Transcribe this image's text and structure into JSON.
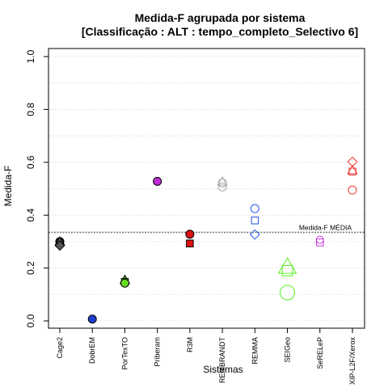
{
  "chart_data": {
    "type": "scatter",
    "title": "Medida-F agrupada por sistema",
    "subtitle": "[Classificação : ALT : tempo_completo_Selectivo 6]",
    "xlabel": "Sistemas",
    "ylabel": "Medida-F",
    "ylim": [
      0,
      1
    ],
    "yticks": [
      "0.0",
      "0.2",
      "0.4",
      "0.6",
      "0.8",
      "1.0"
    ],
    "grid": true,
    "categories": [
      "Cage2",
      "DobrEM",
      "PorTexTO",
      "Priberam",
      "R3M",
      "REMBRANDT",
      "REMMA",
      "SEIGeo",
      "SeRELeP",
      "XIP-L2F/Xerox"
    ],
    "reference_line": {
      "label": "Medida-F MÉDIA",
      "value": 0.335
    },
    "points": [
      {
        "category": "Cage2",
        "y": 0.3,
        "shape": "circle",
        "color": "#555555",
        "filled": true
      },
      {
        "category": "Cage2",
        "y": 0.295,
        "shape": "square",
        "color": "#555555",
        "filled": true
      },
      {
        "category": "Cage2",
        "y": 0.3,
        "shape": "triangle",
        "color": "#555555",
        "filled": true
      },
      {
        "category": "Cage2",
        "y": 0.285,
        "shape": "diamond",
        "color": "#555555",
        "filled": true
      },
      {
        "category": "DobrEM",
        "y": 0.007,
        "shape": "circle",
        "color": "#1f3fd0",
        "filled": true
      },
      {
        "category": "PorTexTO",
        "y": 0.155,
        "shape": "triangle",
        "color": "#66dd22",
        "filled": true
      },
      {
        "category": "PorTexTO",
        "y": 0.148,
        "shape": "square",
        "color": "#66dd22",
        "filled": true
      },
      {
        "category": "PorTexTO",
        "y": 0.143,
        "shape": "circle",
        "color": "#66dd22",
        "filled": true
      },
      {
        "category": "Priberam",
        "y": 0.528,
        "shape": "circle",
        "color": "#c12bd4",
        "filled": true
      },
      {
        "category": "R3M",
        "y": 0.328,
        "shape": "circle",
        "color": "#dd1111",
        "filled": true
      },
      {
        "category": "R3M",
        "y": 0.293,
        "shape": "square",
        "color": "#dd1111",
        "filled": true
      },
      {
        "category": "REMBRANDT",
        "y": 0.527,
        "shape": "triangle",
        "color": "#aaaaaa",
        "filled": false
      },
      {
        "category": "REMBRANDT",
        "y": 0.522,
        "shape": "circle",
        "color": "#aaaaaa",
        "filled": false
      },
      {
        "category": "REMBRANDT",
        "y": 0.507,
        "shape": "circle",
        "color": "#aaaaaa",
        "filled": false
      },
      {
        "category": "REMMA",
        "y": 0.425,
        "shape": "circle",
        "color": "#2255ee",
        "filled": false
      },
      {
        "category": "REMMA",
        "y": 0.38,
        "shape": "square",
        "color": "#2255ee",
        "filled": false
      },
      {
        "category": "REMMA",
        "y": 0.327,
        "shape": "diamond",
        "color": "#2255ee",
        "filled": false
      },
      {
        "category": "SEIGeo",
        "y": 0.205,
        "shape": "triangle",
        "color": "#55ee22",
        "filled": false,
        "size": 1.9
      },
      {
        "category": "SEIGeo",
        "y": 0.19,
        "shape": "square",
        "color": "#55ee22",
        "filled": false,
        "size": 1.5
      },
      {
        "category": "SEIGeo",
        "y": 0.107,
        "shape": "circle",
        "color": "#55ee22",
        "filled": false,
        "size": 1.8
      },
      {
        "category": "SeRELeP",
        "y": 0.307,
        "shape": "circle",
        "color": "#cc33dd",
        "filled": false,
        "size": 0.9
      },
      {
        "category": "SeRELeP",
        "y": 0.297,
        "shape": "square",
        "color": "#cc33dd",
        "filled": false
      },
      {
        "category": "XIP-L2F/Xerox",
        "y": 0.602,
        "shape": "diamond",
        "color": "#ee3333",
        "filled": false
      },
      {
        "category": "XIP-L2F/Xerox",
        "y": 0.57,
        "shape": "triangle",
        "color": "#ee3333",
        "filled": false
      },
      {
        "category": "XIP-L2F/Xerox",
        "y": 0.565,
        "shape": "square",
        "color": "#ee3333",
        "filled": false
      },
      {
        "category": "XIP-L2F/Xerox",
        "y": 0.495,
        "shape": "circle",
        "color": "#ee3333",
        "filled": false
      }
    ]
  }
}
